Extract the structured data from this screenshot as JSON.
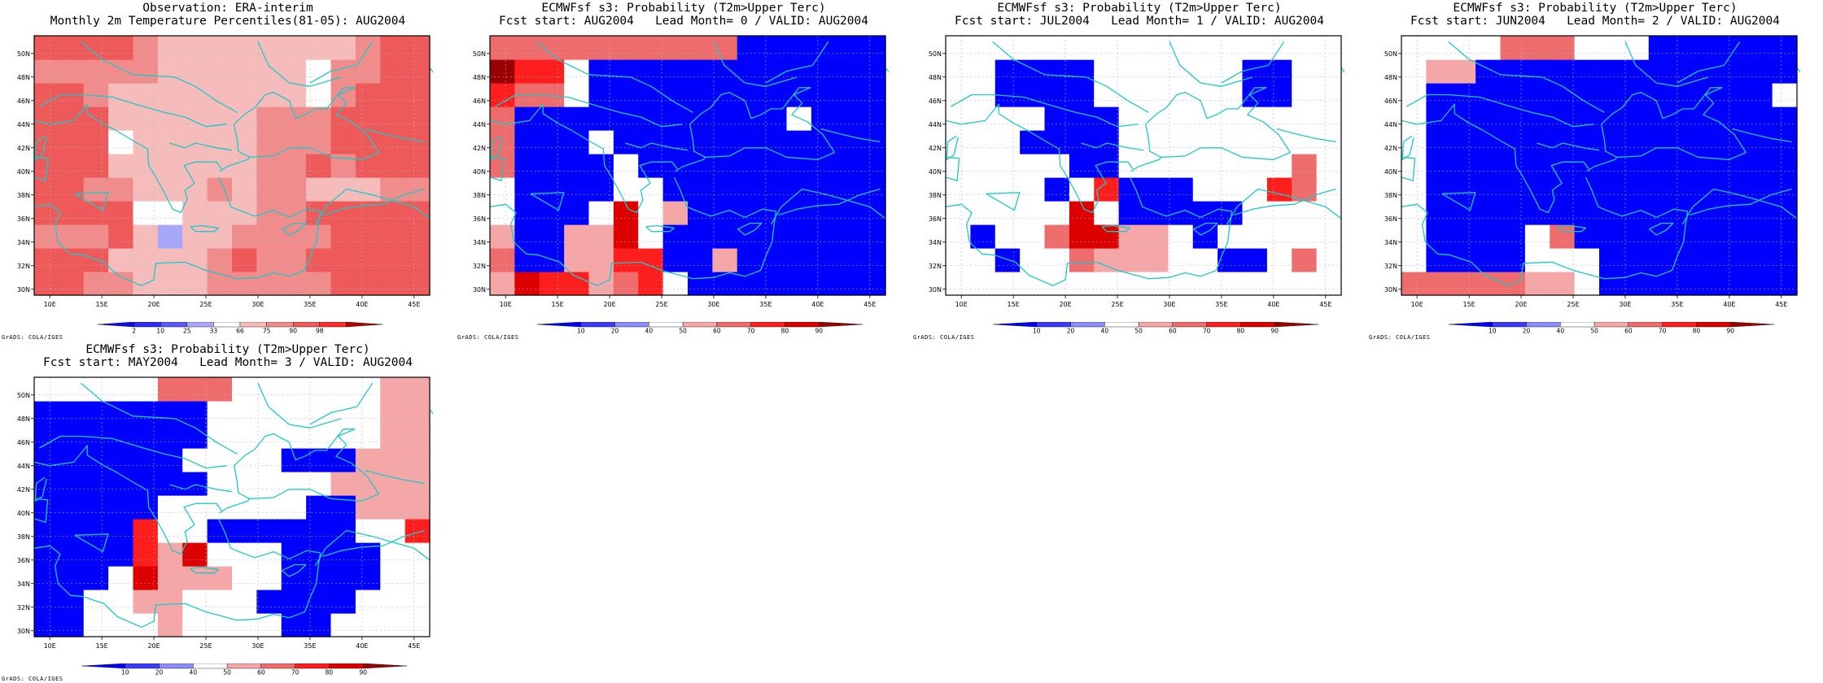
{
  "credit": "GrADS: COLA/IGES",
  "colors": {
    "coast": "#1fc8c8",
    "grid": "#b8b8b8",
    "obs_bins": [
      "#0a0af0",
      "#2b2bf2",
      "#5a5af5",
      "#a7a7fa",
      "#ffffff",
      "#f6bcbc",
      "#f18c8c",
      "#ee5a5a",
      "#ff2a2a",
      "#b80000"
    ],
    "prob_bins": [
      "#0000ff",
      "#3c3cf6",
      "#8c8cf8",
      "#ffffff",
      "#f5a6a6",
      "#ef6c6c",
      "#ff1e1e",
      "#dd0000",
      "#9a0000"
    ]
  },
  "chart_data": [
    {
      "type": "heatmap",
      "title": "Observation: ERA-interim",
      "subtitle": "Monthly 2m Temperature Percentiles(81-05): AUG2004",
      "x_ticks": [
        "10E",
        "15E",
        "20E",
        "25E",
        "30E",
        "35E",
        "40E",
        "45E"
      ],
      "y_ticks": [
        "30N",
        "32N",
        "34N",
        "36N",
        "38N",
        "40N",
        "42N",
        "44N",
        "46N",
        "48N",
        "50N"
      ],
      "x_range": [
        8.5,
        46.5
      ],
      "y_range": [
        29.5,
        51.5
      ],
      "colorbar_ticks": [
        "2",
        "10",
        "25",
        "33",
        "66",
        "75",
        "90",
        "98"
      ],
      "grid": true,
      "grid_rows_south_to_north": [
        "7766555666667777",
        "7775555676677777",
        "6667535566667777",
        "7777445556677777",
        "7766555656655566",
        "7775555556676777",
        "7774555556667777",
        "7775555556667777",
        "7765555555546777",
        "6666655555546677",
        "7777655555555677"
      ]
    },
    {
      "type": "heatmap",
      "title": "ECMWFsf s3: Probability (T2m>Upper Terc)",
      "subtitle": "Fcst start: AUG2004   Lead Month= 0 / VALID: AUG2004",
      "x_ticks": [
        "10E",
        "15E",
        "20E",
        "25E",
        "30E",
        "35E",
        "40E",
        "45E"
      ],
      "y_ticks": [
        "30N",
        "32N",
        "34N",
        "36N",
        "38N",
        "40N",
        "42N",
        "44N",
        "46N",
        "48N",
        "50N"
      ],
      "x_range": [
        8.5,
        46.5
      ],
      "y_range": [
        29.5,
        51.5
      ],
      "colorbar_ticks": [
        "10",
        "20",
        "40",
        "50",
        "60",
        "70",
        "80",
        "90"
      ],
      "grid": true,
      "grid_rows_south_to_north": [
        "4766456300000000",
        "5004466004000000",
        "4004473000000000",
        "3000373400000000",
        "3000033000000000",
        "5000030000000000",
        "5000300000000000",
        "5000000000003000",
        "6553000000000000",
        "8663000000000000",
        "5555555555000000"
      ]
    },
    {
      "type": "heatmap",
      "title": "ECMWFsf s3: Probability (T2m>Upper Terc)",
      "subtitle": "Fcst start: JUL2004   Lead Month= 1 / VALID: AUG2004",
      "x_ticks": [
        "10E",
        "15E",
        "20E",
        "25E",
        "30E",
        "35E",
        "40E",
        "45E"
      ],
      "y_ticks": [
        "30N",
        "32N",
        "34N",
        "36N",
        "38N",
        "40N",
        "42N",
        "44N",
        "46N",
        "48N",
        "50N"
      ],
      "x_range": [
        8.5,
        46.5
      ],
      "y_range": [
        29.5,
        51.5
      ],
      "colorbar_ticks": [
        "10",
        "20",
        "40",
        "50",
        "60",
        "70",
        "80",
        "90"
      ],
      "grid": true,
      "grid_rows_south_to_north": [
        "3333333333333333",
        "3303354443300353",
        "3033577443033333",
        "3333373000003333",
        "3333036000333653",
        "3333300333333353",
        "3330000333333333",
        "3333000333333333",
        "3300003333330033",
        "3300003333330033",
        "3333333333333333"
      ]
    },
    {
      "type": "heatmap",
      "title": "ECMWFsf s3: Probability (T2m>Upper Terc)",
      "subtitle": "Fcst start: JUN2004   Lead Month= 2 / VALID: AUG2004",
      "x_ticks": [
        "10E",
        "15E",
        "20E",
        "25E",
        "30E",
        "35E",
        "40E",
        "45E"
      ],
      "y_ticks": [
        "30N",
        "32N",
        "34N",
        "36N",
        "38N",
        "40N",
        "42N",
        "44N",
        "46N",
        "48N",
        "50N"
      ],
      "x_range": [
        8.5,
        46.5
      ],
      "y_range": [
        29.5,
        51.5
      ],
      "colorbar_ticks": [
        "10",
        "20",
        "40",
        "50",
        "60",
        "70",
        "80",
        "90"
      ],
      "grid": true,
      "grid_rows_south_to_north": [
        "5555544300000000",
        "3000033300000000",
        "3000035000000000",
        "3000000000000000",
        "3000000000000000",
        "3000000000000000",
        "3000000000000000",
        "3000000000000000",
        "3000000000000003",
        "3440000000000000",
        "3333555333000000"
      ]
    },
    {
      "type": "heatmap",
      "title": "ECMWFsf s3: Probability (T2m>Upper Terc)",
      "subtitle": "Fcst start: MAY2004   Lead Month= 3 / VALID: AUG2004",
      "x_ticks": [
        "10E",
        "15E",
        "20E",
        "25E",
        "30E",
        "35E",
        "40E",
        "45E"
      ],
      "y_ticks": [
        "30N",
        "32N",
        "34N",
        "36N",
        "38N",
        "40N",
        "42N",
        "44N",
        "46N",
        "48N",
        "50N"
      ],
      "x_range": [
        8.5,
        46.5
      ],
      "y_range": [
        29.5,
        51.5
      ],
      "colorbar_ticks": [
        "10",
        "20",
        "40",
        "50",
        "60",
        "70",
        "80",
        "90"
      ],
      "grid": true,
      "grid_rows_south_to_north": [
        "0033343333003333",
        "0033443330000333",
        "0003744433000033",
        "0000647333000033",
        "0000633000000336",
        "0000033333300444",
        "0000000333334444",
        "0000003333000444",
        "0000000333333344",
        "0000000333333344",
        "3333355533333344"
      ]
    }
  ]
}
